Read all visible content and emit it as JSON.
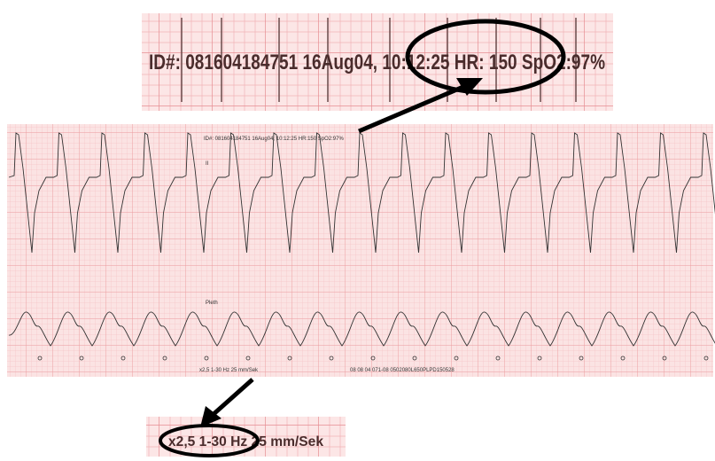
{
  "top_zoom": {
    "text": "ID#: 081604184751  16Aug04, 10:12:25  HR: 150  SpO2:97%"
  },
  "main_strip": {
    "header": "ID#: 081604184751 16Aug04, 10:12:25 HR:150 SpO2:97%",
    "lead_label": "II",
    "pleth_label": "Pleth",
    "footer_left": "x2,5 1-30 Hz 25 mm/Sek",
    "footer_right": "08 08 04 071-08 0502080L650PLPD150528"
  },
  "bottom_zoom": {
    "text": "x2,5 1-30 Hz 25 mm/Sek"
  }
}
